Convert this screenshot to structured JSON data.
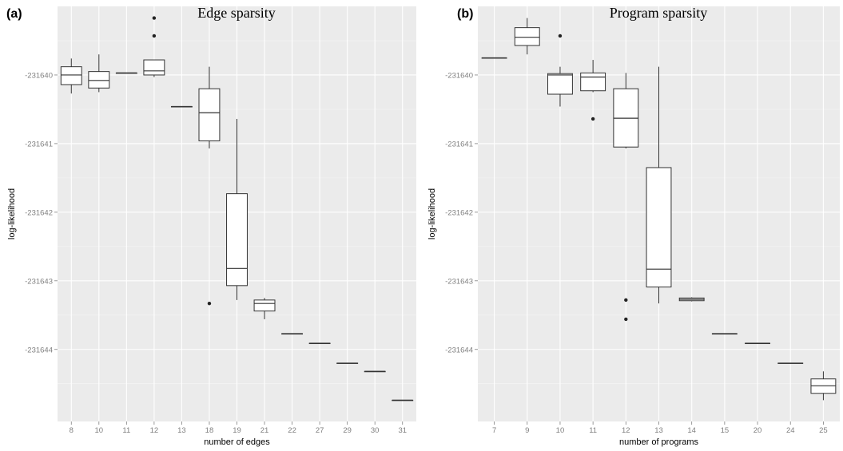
{
  "chart_data": [
    {
      "type": "box",
      "tag": "(a)",
      "title": "Edge sparsity",
      "xlabel": "number of edges",
      "ylabel": "log-likelihood",
      "categories": [
        "8",
        "10",
        "11",
        "12",
        "13",
        "18",
        "19",
        "21",
        "22",
        "27",
        "29",
        "30",
        "31"
      ],
      "yticks": [
        -231640,
        -231641,
        -231642,
        -231643,
        -231644
      ],
      "ylim": [
        -231645.05,
        -231639.0
      ],
      "grid": true,
      "boxes": [
        {
          "category": "8",
          "whisker_low": -231640.27,
          "q1": -231640.14,
          "median": -231640.0,
          "q3": -231639.88,
          "whisker_high": -231639.76,
          "outliers": []
        },
        {
          "category": "10",
          "whisker_low": -231640.25,
          "q1": -231640.19,
          "median": -231640.08,
          "q3": -231639.95,
          "whisker_high": -231639.7,
          "outliers": []
        },
        {
          "category": "11",
          "whisker_low": -231639.97,
          "q1": -231639.97,
          "median": -231639.97,
          "q3": -231639.97,
          "whisker_high": -231639.97,
          "outliers": []
        },
        {
          "category": "12",
          "whisker_low": -231640.03,
          "q1": -231640.0,
          "median": -231639.94,
          "q3": -231639.78,
          "whisker_high": -231639.78,
          "outliers": [
            -231639.17,
            -231639.43
          ]
        },
        {
          "category": "13",
          "whisker_low": -231640.46,
          "q1": -231640.46,
          "median": -231640.46,
          "q3": -231640.46,
          "whisker_high": -231640.46,
          "outliers": []
        },
        {
          "category": "18",
          "whisker_low": -231641.07,
          "q1": -231640.96,
          "median": -231640.55,
          "q3": -231640.2,
          "whisker_high": -231639.88,
          "outliers": [
            -231643.33
          ]
        },
        {
          "category": "19",
          "whisker_low": -231643.28,
          "q1": -231643.07,
          "median": -231642.82,
          "q3": -231641.73,
          "whisker_high": -231640.64,
          "outliers": []
        },
        {
          "category": "21",
          "whisker_low": -231643.56,
          "q1": -231643.44,
          "median": -231643.33,
          "q3": -231643.28,
          "whisker_high": -231643.25,
          "outliers": []
        },
        {
          "category": "22",
          "whisker_low": -231643.77,
          "q1": -231643.77,
          "median": -231643.77,
          "q3": -231643.77,
          "whisker_high": -231643.77,
          "outliers": []
        },
        {
          "category": "27",
          "whisker_low": -231643.91,
          "q1": -231643.91,
          "median": -231643.91,
          "q3": -231643.91,
          "whisker_high": -231643.91,
          "outliers": []
        },
        {
          "category": "29",
          "whisker_low": -231644.2,
          "q1": -231644.2,
          "median": -231644.2,
          "q3": -231644.2,
          "whisker_high": -231644.2,
          "outliers": []
        },
        {
          "category": "30",
          "whisker_low": -231644.32,
          "q1": -231644.32,
          "median": -231644.32,
          "q3": -231644.32,
          "whisker_high": -231644.32,
          "outliers": []
        },
        {
          "category": "31",
          "whisker_low": -231644.74,
          "q1": -231644.74,
          "median": -231644.74,
          "q3": -231644.74,
          "whisker_high": -231644.74,
          "outliers": []
        }
      ]
    },
    {
      "type": "box",
      "tag": "(b)",
      "title": "Program sparsity",
      "xlabel": "number of programs",
      "ylabel": "log-likelihood",
      "categories": [
        "7",
        "9",
        "10",
        "11",
        "12",
        "13",
        "14",
        "15",
        "20",
        "24",
        "25"
      ],
      "yticks": [
        -231640,
        -231641,
        -231642,
        -231643,
        -231644
      ],
      "ylim": [
        -231645.05,
        -231639.0
      ],
      "grid": true,
      "boxes": [
        {
          "category": "7",
          "whisker_low": -231639.75,
          "q1": -231639.75,
          "median": -231639.75,
          "q3": -231639.75,
          "whisker_high": -231639.75,
          "outliers": []
        },
        {
          "category": "9",
          "whisker_low": -231639.7,
          "q1": -231639.57,
          "median": -231639.45,
          "q3": -231639.31,
          "whisker_high": -231639.17,
          "outliers": []
        },
        {
          "category": "10",
          "whisker_low": -231640.46,
          "q1": -231640.28,
          "median": -231640.0,
          "q3": -231639.98,
          "whisker_high": -231639.88,
          "outliers": [
            -231639.43
          ]
        },
        {
          "category": "11",
          "whisker_low": -231640.25,
          "q1": -231640.23,
          "median": -231640.03,
          "q3": -231639.97,
          "whisker_high": -231639.78,
          "outliers": [
            -231640.64
          ]
        },
        {
          "category": "12",
          "whisker_low": -231641.07,
          "q1": -231641.05,
          "median": -231640.63,
          "q3": -231640.2,
          "whisker_high": -231639.97,
          "outliers": [
            -231643.28,
            -231643.56
          ]
        },
        {
          "category": "13",
          "whisker_low": -231643.33,
          "q1": -231643.09,
          "median": -231642.83,
          "q3": -231641.35,
          "whisker_high": -231639.88,
          "outliers": []
        },
        {
          "category": "14",
          "whisker_low": -231643.3,
          "q1": -231643.29,
          "median": -231643.27,
          "q3": -231643.25,
          "whisker_high": -231643.24,
          "outliers": []
        },
        {
          "category": "15",
          "whisker_low": -231643.77,
          "q1": -231643.77,
          "median": -231643.77,
          "q3": -231643.77,
          "whisker_high": -231643.77,
          "outliers": []
        },
        {
          "category": "20",
          "whisker_low": -231643.91,
          "q1": -231643.91,
          "median": -231643.91,
          "q3": -231643.91,
          "whisker_high": -231643.91,
          "outliers": []
        },
        {
          "category": "24",
          "whisker_low": -231644.2,
          "q1": -231644.2,
          "median": -231644.2,
          "q3": -231644.2,
          "whisker_high": -231644.2,
          "outliers": []
        },
        {
          "category": "25",
          "whisker_low": -231644.74,
          "q1": -231644.64,
          "median": -231644.53,
          "q3": -231644.43,
          "whisker_high": -231644.32,
          "outliers": []
        }
      ]
    }
  ]
}
